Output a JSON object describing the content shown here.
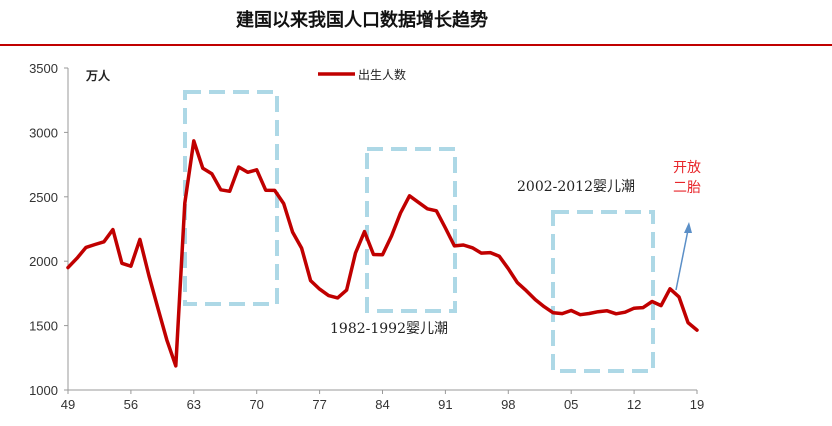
{
  "chart_data": {
    "type": "line",
    "title": "建国以来我国人口数据增长趋势",
    "unit": "万人",
    "legend": [
      "出生人数"
    ],
    "series": [
      {
        "name": "出生人数",
        "color": "#c00000",
        "points": [
          [
            49,
            1950
          ],
          [
            50,
            2023
          ],
          [
            51,
            2107
          ],
          [
            52,
            2130
          ],
          [
            53,
            2151
          ],
          [
            54,
            2245
          ],
          [
            55,
            1984
          ],
          [
            56,
            1961
          ],
          [
            57,
            2169
          ],
          [
            58,
            1889
          ],
          [
            59,
            1635
          ],
          [
            60,
            1389
          ],
          [
            61,
            1187
          ],
          [
            62,
            2451
          ],
          [
            63,
            2934
          ],
          [
            64,
            2721
          ],
          [
            65,
            2679
          ],
          [
            66,
            2554
          ],
          [
            67,
            2543
          ],
          [
            68,
            2731
          ],
          [
            69,
            2690
          ],
          [
            70,
            2710
          ],
          [
            71,
            2551
          ],
          [
            72,
            2550
          ],
          [
            73,
            2447
          ],
          [
            74,
            2226
          ],
          [
            75,
            2102
          ],
          [
            76,
            1849
          ],
          [
            77,
            1783
          ],
          [
            78,
            1733
          ],
          [
            79,
            1715
          ],
          [
            80,
            1776
          ],
          [
            81,
            2064
          ],
          [
            82,
            2230
          ],
          [
            83,
            2052
          ],
          [
            84,
            2050
          ],
          [
            85,
            2196
          ],
          [
            86,
            2374
          ],
          [
            87,
            2508
          ],
          [
            88,
            2457
          ],
          [
            89,
            2407
          ],
          [
            90,
            2391
          ],
          [
            91,
            2258
          ],
          [
            92,
            2119
          ],
          [
            93,
            2126
          ],
          [
            94,
            2104
          ],
          [
            95,
            2063
          ],
          [
            96,
            2067
          ],
          [
            97,
            2038
          ],
          [
            98,
            1942
          ],
          [
            99,
            1834
          ],
          [
            0,
            1771
          ],
          [
            1,
            1702
          ],
          [
            2,
            1647
          ],
          [
            3,
            1599
          ],
          [
            4,
            1593
          ],
          [
            5,
            1617
          ],
          [
            6,
            1585
          ],
          [
            7,
            1594
          ],
          [
            8,
            1608
          ],
          [
            9,
            1615
          ],
          [
            10,
            1592
          ],
          [
            11,
            1604
          ],
          [
            12,
            1635
          ],
          [
            13,
            1640
          ],
          [
            14,
            1687
          ],
          [
            15,
            1655
          ],
          [
            16,
            1786
          ],
          [
            17,
            1723
          ],
          [
            18,
            1523
          ],
          [
            19,
            1465
          ]
        ]
      }
    ],
    "x_tick_labels": [
      "49",
      "56",
      "63",
      "70",
      "77",
      "84",
      "91",
      "98",
      "05",
      "12",
      "19"
    ],
    "y_ticks": [
      1000,
      1500,
      2000,
      2500,
      3000,
      3500
    ],
    "ylim": [
      1000,
      3500
    ],
    "grid": false,
    "legend_position": "top",
    "annotations": {
      "boom_1982_1992": "1982-1992婴儿潮",
      "boom_2002_2012": "2002-2012婴儿潮",
      "two_child_line1": "开放",
      "two_child_line2": "二胎"
    }
  }
}
